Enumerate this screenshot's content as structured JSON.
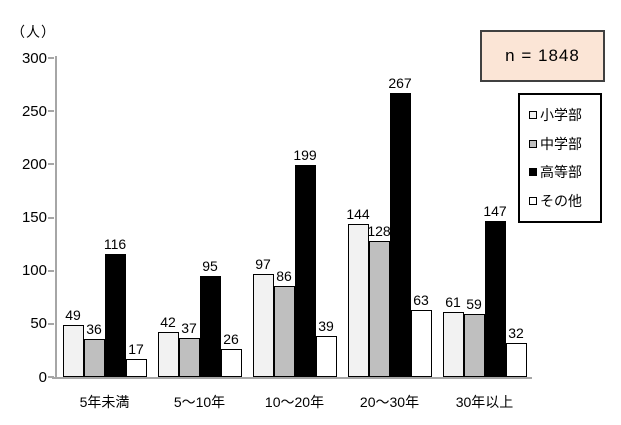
{
  "chart_data": {
    "type": "bar",
    "unit_label": "（人）",
    "categories": [
      "5年未満",
      "5〜10年",
      "10〜20年",
      "20〜30年",
      "30年以上"
    ],
    "series": [
      {
        "name": "小学部",
        "color": "#F2F2F2",
        "values": [
          49,
          42,
          97,
          144,
          61
        ]
      },
      {
        "name": "中学部",
        "color": "#BFBFBF",
        "values": [
          36,
          37,
          86,
          128,
          59
        ]
      },
      {
        "name": "高等部",
        "color": "#000000",
        "values": [
          116,
          95,
          199,
          267,
          147
        ]
      },
      {
        "name": "その他",
        "color": "#FFFFFF",
        "values": [
          17,
          26,
          39,
          63,
          32
        ]
      }
    ],
    "ylim": [
      0,
      300
    ],
    "yticks": [
      0,
      50,
      100,
      150,
      200,
      250,
      300
    ],
    "grid": false,
    "value_labels": true,
    "legend_position": "right"
  },
  "annotation": {
    "sample_size_label": "n = 1848"
  },
  "colors": {
    "axis": "#A6A6A6",
    "bar_border": "#000000",
    "nbox_fill": "#FBE5D6",
    "nbox_border": "#404040",
    "legend_border": "#000000",
    "text": "#000000",
    "background": "#FFFFFF"
  }
}
